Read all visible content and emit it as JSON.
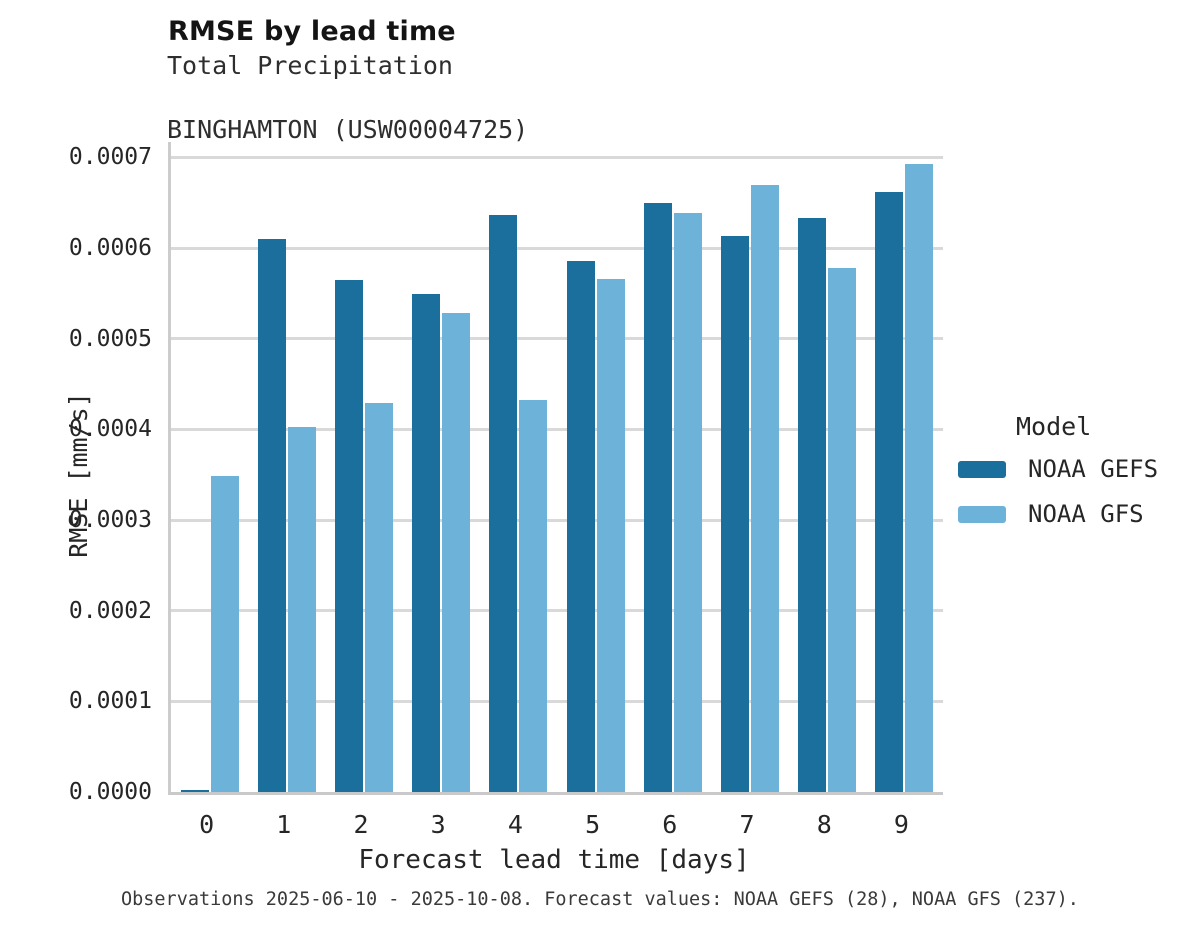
{
  "header": {
    "title": "RMSE by lead time",
    "subtitle_line1": "Total Precipitation",
    "subtitle_line2": "BINGHAMTON (USW00004725)"
  },
  "chart_data": {
    "type": "bar",
    "title": "RMSE by lead time",
    "subtitle": [
      "Total Precipitation",
      "BINGHAMTON (USW00004725)"
    ],
    "categories": [
      "0",
      "1",
      "2",
      "3",
      "4",
      "5",
      "6",
      "7",
      "8",
      "9"
    ],
    "series": [
      {
        "name": "NOAA GEFS",
        "color": "#1a6f9d",
        "values": [
          2.5e-06,
          0.00061,
          0.000565,
          0.000549,
          0.000637,
          0.000586,
          0.00065,
          0.000613,
          0.000633,
          0.000662
        ]
      },
      {
        "name": "NOAA GFS",
        "color": "#6cb2d9",
        "values": [
          0.000349,
          0.000403,
          0.000429,
          0.000528,
          0.000432,
          0.000566,
          0.000639,
          0.00067,
          0.000578,
          0.000693
        ]
      }
    ],
    "xlabel": "Forecast lead time [days]",
    "ylabel": "RMSE [mm/s]",
    "ylim": [
      0,
      0.000717
    ],
    "yticks": [
      0.0,
      0.0001,
      0.0002,
      0.0003,
      0.0004,
      0.0005,
      0.0006,
      0.0007
    ],
    "ytick_labels": [
      "0.0000",
      "0.0001",
      "0.0002",
      "0.0003",
      "0.0004",
      "0.0005",
      "0.0006",
      "0.0007"
    ],
    "grid": "horizontal",
    "legend": {
      "title": "Model",
      "position": "right",
      "entries": [
        "NOAA GEFS",
        "NOAA GFS"
      ]
    }
  },
  "colors": {
    "gefs_dark_blue": "#1a6f9d",
    "gfs_light_blue": "#6cb2d9",
    "gridline": "#d9d9d9",
    "spine": "#cccccc"
  },
  "footer": {
    "caption": "Observations 2025-06-10 - 2025-10-08. Forecast values: NOAA GEFS (28), NOAA GFS (237)."
  }
}
